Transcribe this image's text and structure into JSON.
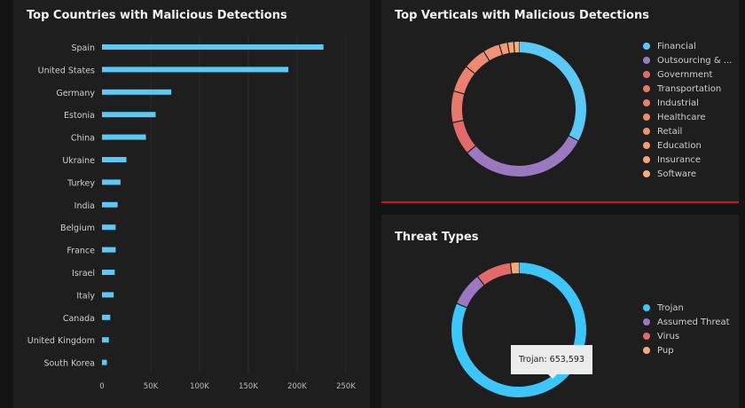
{
  "colors": {
    "bar": "#5cc8f5",
    "trojan": "#3cc6fb",
    "purple": "#9b79c0",
    "red1": "#e36a6a",
    "accent_line": "#c8171b"
  },
  "chart_data": [
    {
      "type": "bar",
      "title": "Top Countries with Malicious Detections",
      "orientation": "horizontal",
      "categories": [
        "Spain",
        "United States",
        "Germany",
        "Estonia",
        "China",
        "Ukraine",
        "Turkey",
        "India",
        "Belgium",
        "France",
        "Israel",
        "Italy",
        "Canada",
        "United Kingdom",
        "South Korea"
      ],
      "values": [
        227000,
        191000,
        71000,
        55000,
        45000,
        25000,
        19000,
        16000,
        14000,
        14000,
        13000,
        12000,
        8500,
        7000,
        5000
      ],
      "xlim": [
        0,
        250000
      ],
      "xticks": [
        "0",
        "50K",
        "100K",
        "150K",
        "200K",
        "250K"
      ],
      "grid": true
    },
    {
      "type": "pie",
      "title": "Top Verticals with Malicious Detections",
      "donut": true,
      "legend": "right",
      "labels": [
        "Financial",
        "Outsourcing & ...",
        "Government",
        "Transportation",
        "Industrial",
        "Healthcare",
        "Retail",
        "Education",
        "Insurance",
        "Software"
      ],
      "values": [
        32.8,
        31,
        8,
        7.5,
        6.5,
        5.5,
        4,
        2,
        1.5,
        1.2
      ],
      "colors": [
        "#5cc8f5",
        "#9b79c0",
        "#e36a6a",
        "#e8786e",
        "#ec8070",
        "#ef8a72",
        "#f09274",
        "#f29c76",
        "#f4a679",
        "#f6b07c"
      ]
    },
    {
      "type": "pie",
      "title": "Threat Types",
      "donut": true,
      "legend": "right",
      "labels": [
        "Trojan",
        "Assumed Threat",
        "Virus",
        "Pup"
      ],
      "values": [
        653593,
        65000,
        68000,
        16000
      ],
      "colors": [
        "#3cc6fb",
        "#9b79c0",
        "#e36a6a",
        "#f6a878"
      ],
      "tooltip": "Trojan: 653,593"
    }
  ]
}
